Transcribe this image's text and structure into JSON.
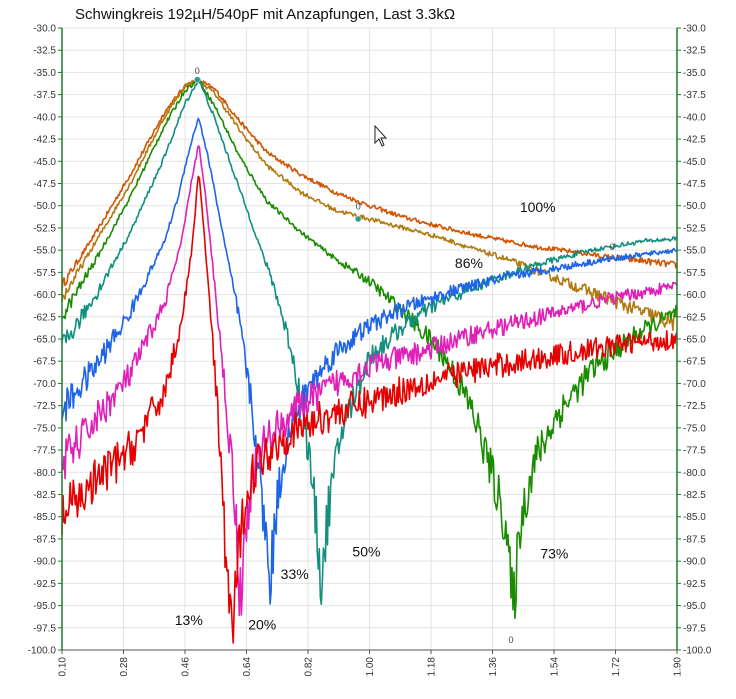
{
  "chart_data": {
    "type": "line",
    "title": "Schwingkreis 192µH/540pF mit Anzapfungen, Last 3.3kΩ",
    "xlabel": "",
    "ylabel": "",
    "xlim": [
      0.1,
      1.9
    ],
    "ylim": [
      -100.0,
      -30.0
    ],
    "grid": true,
    "legend": "none",
    "x_ticks": [
      "0.10",
      "0.28",
      "0.46",
      "0.64",
      "0.82",
      "1.00",
      "1.18",
      "1.36",
      "1.54",
      "1.72",
      "1.90"
    ],
    "y_ticks": [
      "-30.0",
      "-32.5",
      "-35.0",
      "-37.5",
      "-40.0",
      "-42.5",
      "-45.0",
      "-47.5",
      "-50.0",
      "-52.5",
      "-55.0",
      "-57.5",
      "-60.0",
      "-62.5",
      "-65.0",
      "-67.5",
      "-70.0",
      "-72.5",
      "-75.0",
      "-77.5",
      "-80.0",
      "-82.5",
      "-85.0",
      "-87.5",
      "-90.0",
      "-92.5",
      "-95.0",
      "-97.5",
      "-100.0"
    ],
    "series": [
      {
        "name": "100%",
        "color": "#d35400",
        "x": [
          0.1,
          0.2,
          0.3,
          0.4,
          0.46,
          0.5,
          0.55,
          0.62,
          0.7,
          0.8,
          0.9,
          1.0,
          1.1,
          1.2,
          1.3,
          1.4,
          1.5,
          1.6,
          1.7,
          1.8,
          1.9
        ],
        "y": [
          -59.0,
          -53.0,
          -46.5,
          -39.5,
          -36.5,
          -35.8,
          -37.0,
          -40.5,
          -44.0,
          -46.5,
          -48.5,
          -50.0,
          -51.3,
          -52.3,
          -53.2,
          -54.0,
          -54.7,
          -55.2,
          -55.8,
          -56.2,
          -56.7
        ]
      },
      {
        "name": "86%",
        "color": "#b07a10",
        "x": [
          0.1,
          0.2,
          0.3,
          0.4,
          0.46,
          0.5,
          0.55,
          0.62,
          0.7,
          0.8,
          0.9,
          1.0,
          1.1,
          1.2,
          1.3,
          1.4,
          1.5,
          1.6,
          1.7,
          1.8,
          1.9
        ],
        "y": [
          -60.5,
          -54.0,
          -47.5,
          -40.0,
          -36.5,
          -35.8,
          -37.5,
          -41.5,
          -45.5,
          -48.5,
          -50.5,
          -51.5,
          -52.5,
          -53.5,
          -54.8,
          -56.0,
          -57.5,
          -59.0,
          -60.5,
          -62.0,
          -63.3
        ]
      },
      {
        "name": "73%",
        "color": "#1a8c00",
        "x": [
          0.1,
          0.2,
          0.3,
          0.4,
          0.46,
          0.5,
          0.55,
          0.62,
          0.7,
          0.8,
          0.9,
          1.0,
          1.1,
          1.2,
          1.25,
          1.3,
          1.35,
          1.4,
          1.42,
          1.44,
          1.48,
          1.55,
          1.65,
          1.78,
          1.9
        ],
        "y": [
          -62.5,
          -56.0,
          -49.0,
          -41.0,
          -37.0,
          -35.8,
          -39.0,
          -44.5,
          -49.5,
          -53.0,
          -56.0,
          -58.5,
          -62.0,
          -66.0,
          -69.0,
          -73.0,
          -79.0,
          -86.0,
          -96.0,
          -86.0,
          -79.0,
          -73.5,
          -68.5,
          -64.5,
          -62.0
        ]
      },
      {
        "name": "50%",
        "color": "#138f80",
        "x": [
          0.1,
          0.2,
          0.3,
          0.4,
          0.46,
          0.5,
          0.54,
          0.6,
          0.66,
          0.72,
          0.77,
          0.81,
          0.84,
          0.86,
          0.88,
          0.92,
          1.0,
          1.1,
          1.2,
          1.35,
          1.5,
          1.65,
          1.8,
          1.9
        ],
        "y": [
          -66.0,
          -60.0,
          -53.0,
          -44.5,
          -38.5,
          -35.8,
          -39.5,
          -46.0,
          -52.5,
          -59.0,
          -66.0,
          -74.0,
          -84.0,
          -92.5,
          -84.0,
          -75.0,
          -67.0,
          -63.5,
          -61.0,
          -58.5,
          -56.5,
          -55.0,
          -54.0,
          -53.7
        ]
      },
      {
        "name": "33%",
        "color": "#1e64e6",
        "x": [
          0.1,
          0.2,
          0.3,
          0.4,
          0.44,
          0.47,
          0.5,
          0.53,
          0.57,
          0.62,
          0.66,
          0.69,
          0.71,
          0.73,
          0.76,
          0.82,
          0.9,
          1.0,
          1.1,
          1.25,
          1.4,
          1.55,
          1.7,
          1.9
        ],
        "y": [
          -73.0,
          -68.0,
          -62.0,
          -54.0,
          -49.0,
          -44.0,
          -40.0,
          -45.0,
          -53.0,
          -63.0,
          -74.0,
          -85.0,
          -92.0,
          -83.0,
          -76.0,
          -70.5,
          -66.5,
          -63.5,
          -61.5,
          -59.5,
          -58.0,
          -57.0,
          -56.0,
          -55.0
        ]
      },
      {
        "name": "20%",
        "color": "#e020b8",
        "x": [
          0.1,
          0.2,
          0.3,
          0.4,
          0.45,
          0.48,
          0.5,
          0.52,
          0.55,
          0.58,
          0.61,
          0.62,
          0.64,
          0.66,
          0.7,
          0.8,
          0.9,
          1.0,
          1.15,
          1.3,
          1.5,
          1.7,
          1.9
        ],
        "y": [
          -79.0,
          -74.0,
          -69.0,
          -61.0,
          -54.0,
          -47.0,
          -43.0,
          -49.0,
          -60.0,
          -72.0,
          -85.0,
          -95.0,
          -86.0,
          -80.0,
          -76.0,
          -72.5,
          -70.0,
          -68.0,
          -66.5,
          -64.5,
          -62.5,
          -60.5,
          -59.0
        ]
      },
      {
        "name": "13%",
        "color": "#e60000",
        "x": [
          0.1,
          0.2,
          0.3,
          0.4,
          0.45,
          0.48,
          0.5,
          0.52,
          0.54,
          0.56,
          0.58,
          0.6,
          0.62,
          0.64,
          0.67,
          0.75,
          0.85,
          1.0,
          1.15,
          1.3,
          1.45,
          1.6,
          1.75,
          1.9
        ],
        "y": [
          -85.0,
          -81.0,
          -77.5,
          -71.0,
          -63.0,
          -55.0,
          -46.0,
          -55.0,
          -65.0,
          -76.0,
          -90.0,
          -98.0,
          -88.0,
          -82.0,
          -79.0,
          -76.0,
          -74.0,
          -72.0,
          -70.0,
          -68.5,
          -67.5,
          -66.5,
          -65.5,
          -65.0
        ]
      }
    ],
    "annotations": [
      {
        "text": "100%",
        "x": 1.44,
        "y": -50.7
      },
      {
        "text": "86%",
        "x": 1.25,
        "y": -57.0
      },
      {
        "text": "73%",
        "x": 1.5,
        "y": -89.7
      },
      {
        "text": "50%",
        "x": 0.95,
        "y": -89.5
      },
      {
        "text": "33%",
        "x": 0.74,
        "y": -92.0
      },
      {
        "text": "20%",
        "x": 0.645,
        "y": -97.7
      },
      {
        "text": "13%",
        "x": 0.43,
        "y": -97.2
      }
    ],
    "point_markers": [
      {
        "text": "0",
        "x": 0.496,
        "y": -35.2
      },
      {
        "text": "0",
        "x": 0.967,
        "y": -50.4
      },
      {
        "text": "0",
        "x": 1.71,
        "y": -55.0
      },
      {
        "text": "0",
        "x": 1.414,
        "y": -99.2
      }
    ]
  }
}
